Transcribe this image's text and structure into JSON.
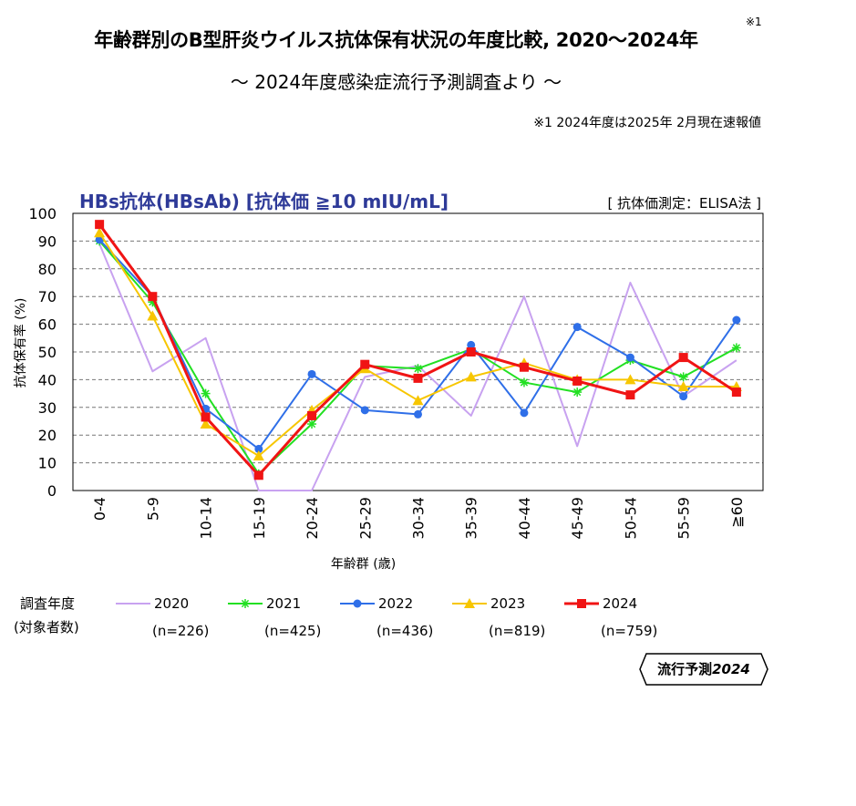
{
  "title": "年齢群別のB型肝炎ウイルス抗体保有状況の年度比較, 2020〜2024年",
  "title_note": "※1",
  "subtitle": "〜 2024年度感染症流行予測調査より 〜",
  "footnote": "※1  2024年度は2025年 2月現在速報値",
  "badge": {
    "text_main": "流行予測",
    "text_year": "2024"
  },
  "legend": {
    "title_line1": "調査年度",
    "title_line2": "(対象者数)"
  },
  "chart_data": {
    "type": "line",
    "title": "HBs抗体(HBsAb) [抗体価 ≧10 mIU/mL]",
    "method_note": "[ 抗体価測定：ELISA法 ]",
    "xlabel": "年齢群 (歳)",
    "ylabel": "抗体保有率 (%)",
    "ylim": [
      0,
      100
    ],
    "yticks": [
      "0",
      "10",
      "20",
      "30",
      "40",
      "50",
      "60",
      "70",
      "80",
      "90",
      "100"
    ],
    "grid": true,
    "legend_position": "bottom",
    "categories": [
      "0-4",
      "5-9",
      "10-14",
      "15-19",
      "20-24",
      "25-29",
      "30-34",
      "35-39",
      "40-44",
      "45-49",
      "50-54",
      "55-59",
      "≧60"
    ],
    "series": [
      {
        "name": "2020",
        "n_label": "(n=226)",
        "color": "#c8a2f0",
        "marker": "none",
        "values": [
          89,
          43,
          55,
          0,
          0,
          41,
          45,
          27,
          70,
          16,
          75,
          34,
          47
        ]
      },
      {
        "name": "2021",
        "n_label": "(n=425)",
        "color": "#22e022",
        "marker": "asterisk",
        "values": [
          90,
          68,
          35,
          6,
          24,
          45,
          44,
          51,
          39,
          35.5,
          47,
          41,
          51.5
        ]
      },
      {
        "name": "2022",
        "n_label": "(n=436)",
        "color": "#2f6fe8",
        "marker": "circle",
        "values": [
          90.5,
          70,
          29.5,
          15,
          42,
          29,
          27.5,
          52.5,
          28,
          59,
          48,
          34,
          61.5
        ]
      },
      {
        "name": "2023",
        "n_label": "(n=819)",
        "color": "#f7c600",
        "marker": "triangle",
        "values": [
          93,
          63,
          24,
          12.5,
          29,
          44,
          32.5,
          41,
          46,
          40,
          40,
          37.5,
          37.5
        ]
      },
      {
        "name": "2024",
        "n_label": "(n=759)",
        "color": "#f01414",
        "marker": "square",
        "values": [
          96,
          70,
          26.5,
          5.5,
          27,
          45.5,
          40.5,
          50,
          44.5,
          39.5,
          34.5,
          48,
          35.5
        ]
      }
    ]
  }
}
